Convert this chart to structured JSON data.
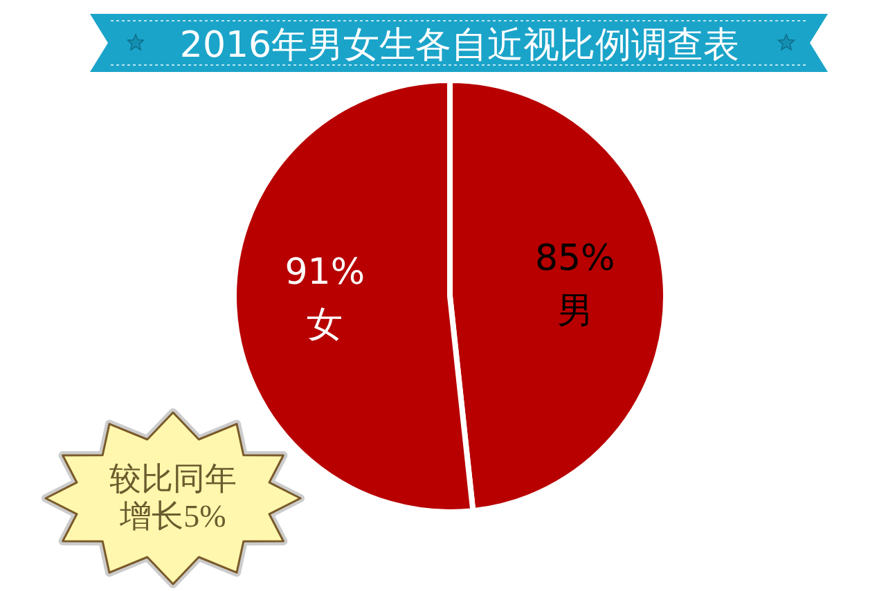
{
  "chart_data": {
    "type": "pie",
    "title": "2016年男女生各自近视比例调查表",
    "categories": [
      "男",
      "女"
    ],
    "values": [
      85,
      91
    ],
    "value_labels": [
      "85%",
      "91%"
    ],
    "colors": [
      "#b80000",
      "#b80000"
    ],
    "annotations": [
      "较比同年",
      "增长5%"
    ]
  }
}
